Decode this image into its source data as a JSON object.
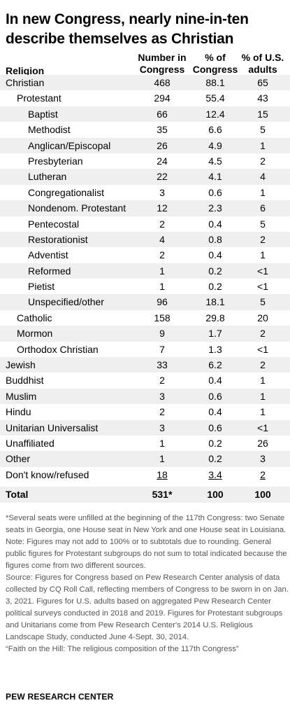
{
  "title": "In new Congress, nearly nine-in-ten describe themselves as Christian",
  "headers": {
    "religion": "Religion",
    "number": "Number in Congress",
    "pct_congress": "% of Congress",
    "pct_adults": "% of U.S. adults"
  },
  "chart_data": {
    "type": "table",
    "columns": [
      "Religion",
      "Number in Congress",
      "% of Congress",
      "% of U.S. adults"
    ],
    "rows": [
      {
        "label": "Christian",
        "level": 0,
        "number": "468",
        "pct_congress": "88.1",
        "pct_adults": "65"
      },
      {
        "label": "Protestant",
        "level": 1,
        "number": "294",
        "pct_congress": "55.4",
        "pct_adults": "43"
      },
      {
        "label": "Baptist",
        "level": 2,
        "number": "66",
        "pct_congress": "12.4",
        "pct_adults": "15"
      },
      {
        "label": "Methodist",
        "level": 2,
        "number": "35",
        "pct_congress": "6.6",
        "pct_adults": "5"
      },
      {
        "label": "Anglican/Episcopal",
        "level": 2,
        "number": "26",
        "pct_congress": "4.9",
        "pct_adults": "1"
      },
      {
        "label": "Presbyterian",
        "level": 2,
        "number": "24",
        "pct_congress": "4.5",
        "pct_adults": "2"
      },
      {
        "label": "Lutheran",
        "level": 2,
        "number": "22",
        "pct_congress": "4.1",
        "pct_adults": "4"
      },
      {
        "label": "Congregationalist",
        "level": 2,
        "number": "3",
        "pct_congress": "0.6",
        "pct_adults": "1"
      },
      {
        "label": "Nondenom. Protestant",
        "level": 2,
        "number": "12",
        "pct_congress": "2.3",
        "pct_adults": "6"
      },
      {
        "label": "Pentecostal",
        "level": 2,
        "number": "2",
        "pct_congress": "0.4",
        "pct_adults": "5"
      },
      {
        "label": "Restorationist",
        "level": 2,
        "number": "4",
        "pct_congress": "0.8",
        "pct_adults": "2"
      },
      {
        "label": "Adventist",
        "level": 2,
        "number": "2",
        "pct_congress": "0.4",
        "pct_adults": "1"
      },
      {
        "label": "Reformed",
        "level": 2,
        "number": "1",
        "pct_congress": "0.2",
        "pct_adults": "<1"
      },
      {
        "label": "Pietist",
        "level": 2,
        "number": "1",
        "pct_congress": "0.2",
        "pct_adults": "<1"
      },
      {
        "label": "Unspecified/other",
        "level": 2,
        "number": "96",
        "pct_congress": "18.1",
        "pct_adults": "5"
      },
      {
        "label": "Catholic",
        "level": 1,
        "number": "158",
        "pct_congress": "29.8",
        "pct_adults": "20"
      },
      {
        "label": "Mormon",
        "level": 1,
        "number": "9",
        "pct_congress": "1.7",
        "pct_adults": "2"
      },
      {
        "label": "Orthodox Christian",
        "level": 1,
        "number": "7",
        "pct_congress": "1.3",
        "pct_adults": "<1"
      },
      {
        "label": "Jewish",
        "level": 0,
        "number": "33",
        "pct_congress": "6.2",
        "pct_adults": "2"
      },
      {
        "label": "Buddhist",
        "level": 0,
        "number": "2",
        "pct_congress": "0.4",
        "pct_adults": "1"
      },
      {
        "label": "Muslim",
        "level": 0,
        "number": "3",
        "pct_congress": "0.6",
        "pct_adults": "1"
      },
      {
        "label": "Hindu",
        "level": 0,
        "number": "2",
        "pct_congress": "0.4",
        "pct_adults": "1"
      },
      {
        "label": "Unitarian Universalist",
        "level": 0,
        "number": "3",
        "pct_congress": "0.6",
        "pct_adults": "<1"
      },
      {
        "label": "Unaffiliated",
        "level": 0,
        "number": "1",
        "pct_congress": "0.2",
        "pct_adults": "26"
      },
      {
        "label": "Other",
        "level": 0,
        "number": "1",
        "pct_congress": "0.2",
        "pct_adults": "3"
      },
      {
        "label": "Don't know/refused",
        "level": 0,
        "number": "18",
        "pct_congress": "3.4",
        "pct_adults": "2",
        "underline": true
      },
      {
        "label": "Total",
        "level": 0,
        "number": "531*",
        "pct_congress": "100",
        "pct_adults": "100",
        "bold": true
      }
    ]
  },
  "notes": [
    "*Several seats were unfilled at the beginning of the 117th Congress: two Senate seats in Georgia, one House seat in New York and one House seat in Louisiana.",
    "Note: Figures may not add to 100% or to subtotals due to rounding. General public figures for Protestant subgroups do not sum to total indicated because the figures come from two different sources.",
    "Source: Figures for Congress based on Pew Research Center analysis of data collected by CQ Roll Call, reflecting members of Congress to be sworn in on Jan. 3, 2021. Figures for U.S. adults based on aggregated Pew Research Center political surveys conducted in 2018 and 2019. Figures for Protestant subgroups and Unitarians come from Pew Research Center's 2014 U.S. Religious Landscape Study, conducted June 4-Sept. 30, 2014.",
    "“Faith on the Hill: The religious composition of the 117th Congress”"
  ],
  "source_label": "PEW RESEARCH CENTER",
  "colors": {
    "shade": "#efefef",
    "note_text": "#555555"
  }
}
